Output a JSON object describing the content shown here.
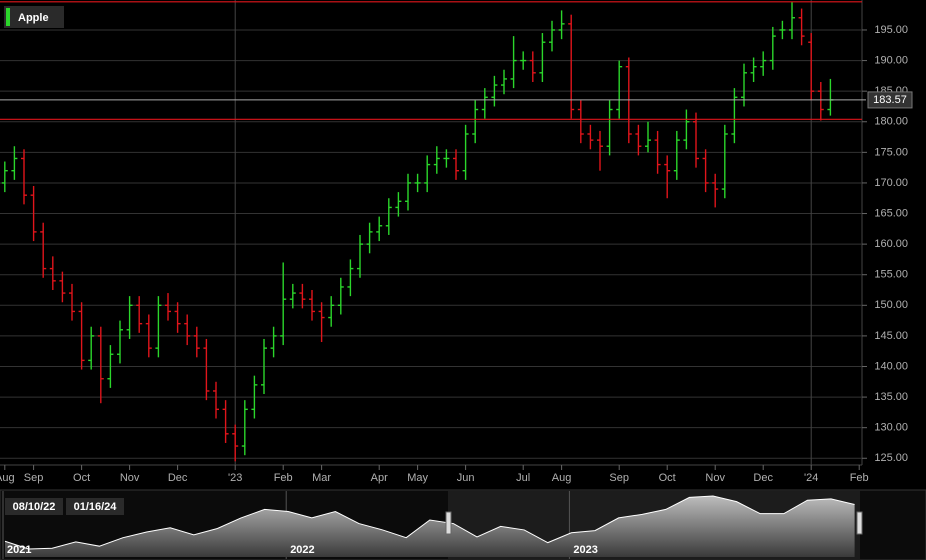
{
  "chart_data": {
    "type": "ohlc",
    "title": "Apple",
    "categories": [
      "Aug",
      null,
      null,
      "Sep",
      null,
      null,
      null,
      null,
      "Oct",
      null,
      null,
      null,
      null,
      "Nov",
      null,
      null,
      null,
      null,
      "Dec",
      null,
      null,
      null,
      null,
      null,
      "'23",
      null,
      null,
      null,
      null,
      "Feb",
      null,
      null,
      null,
      "Mar",
      null,
      null,
      null,
      null,
      null,
      "Apr",
      null,
      null,
      null,
      "May",
      null,
      null,
      null,
      null,
      "Jun",
      null,
      null,
      null,
      null,
      null,
      "Jul",
      null,
      null,
      null,
      "Aug",
      null,
      null,
      null,
      null,
      null,
      "Sep",
      null,
      null,
      null,
      null,
      "Oct",
      null,
      null,
      null,
      null,
      "Nov",
      null,
      null,
      null,
      null,
      "Dec",
      null,
      null,
      null,
      null,
      "'24",
      null,
      null,
      null,
      null,
      "Feb"
    ],
    "ohlc": [
      [
        170,
        173.5,
        168.5,
        172
      ],
      [
        172,
        176,
        170.5,
        174
      ],
      [
        174,
        175.5,
        166.5,
        168
      ],
      [
        168,
        169.5,
        160.5,
        162
      ],
      [
        162,
        163.5,
        154.5,
        156
      ],
      [
        156,
        158,
        152.5,
        154
      ],
      [
        154,
        155.5,
        150.5,
        152
      ],
      [
        152,
        153.5,
        147.5,
        149
      ],
      [
        149,
        150.5,
        139.5,
        141
      ],
      [
        141,
        146.5,
        139.5,
        145
      ],
      [
        145,
        146.5,
        134,
        138
      ],
      [
        138,
        143.5,
        136.5,
        142
      ],
      [
        142,
        147.5,
        140.5,
        146
      ],
      [
        146,
        151.5,
        144.5,
        150
      ],
      [
        150,
        151.5,
        145.5,
        147
      ],
      [
        147,
        148.5,
        141.5,
        143
      ],
      [
        143,
        151.5,
        141.5,
        150
      ],
      [
        150,
        152,
        147.5,
        149
      ],
      [
        149,
        150.5,
        145.5,
        147
      ],
      [
        147,
        148.5,
        143.5,
        145
      ],
      [
        145,
        146.5,
        141.5,
        143
      ],
      [
        143,
        144.5,
        134.5,
        136
      ],
      [
        136,
        137.5,
        131.5,
        133
      ],
      [
        133,
        134.5,
        127.5,
        129
      ],
      [
        129,
        130.5,
        124.5,
        127
      ],
      [
        127,
        134.5,
        125.5,
        133
      ],
      [
        133,
        138.5,
        131.5,
        137
      ],
      [
        137,
        144.5,
        135.5,
        143
      ],
      [
        143,
        146.5,
        141.5,
        145
      ],
      [
        145,
        157,
        143.5,
        151
      ],
      [
        151,
        153.5,
        149.5,
        152
      ],
      [
        152,
        153.5,
        149.5,
        151
      ],
      [
        151,
        152.5,
        147.5,
        149
      ],
      [
        149,
        150.5,
        144,
        148
      ],
      [
        148,
        151.5,
        146.5,
        150
      ],
      [
        150,
        154.5,
        148.5,
        153
      ],
      [
        153,
        157.5,
        151.5,
        156
      ],
      [
        156,
        161.5,
        154.5,
        160
      ],
      [
        160,
        163.5,
        158.5,
        162
      ],
      [
        162,
        164.5,
        160.5,
        163
      ],
      [
        163,
        167.5,
        161.5,
        166
      ],
      [
        166,
        168.5,
        164.5,
        167
      ],
      [
        167,
        171.5,
        165.5,
        170
      ],
      [
        170,
        171.5,
        168.5,
        170
      ],
      [
        170,
        174.5,
        168.5,
        173
      ],
      [
        173,
        176,
        171.5,
        174
      ],
      [
        174,
        175.5,
        172.5,
        174
      ],
      [
        174,
        175.5,
        170.5,
        172
      ],
      [
        172,
        179.5,
        170.5,
        178
      ],
      [
        178,
        183.5,
        176.5,
        182
      ],
      [
        182,
        185.5,
        180.5,
        184
      ],
      [
        184,
        187.5,
        182.5,
        186
      ],
      [
        186,
        188.5,
        184.5,
        187
      ],
      [
        187,
        194,
        185.5,
        190
      ],
      [
        190,
        191.5,
        188.5,
        190
      ],
      [
        190,
        191.5,
        186.5,
        188
      ],
      [
        188,
        194.5,
        186.5,
        193
      ],
      [
        193,
        196.5,
        191.5,
        195
      ],
      [
        195,
        198.2,
        193.5,
        196
      ],
      [
        196,
        197.5,
        180.5,
        182
      ],
      [
        182,
        183.5,
        176.5,
        178
      ],
      [
        178,
        179.5,
        175.5,
        177
      ],
      [
        177,
        178.5,
        172,
        176
      ],
      [
        176,
        183.5,
        174.5,
        182
      ],
      [
        182,
        190,
        180.5,
        189
      ],
      [
        189,
        190.5,
        176.5,
        178
      ],
      [
        178,
        179.5,
        174.5,
        176
      ],
      [
        176,
        180,
        175,
        177
      ],
      [
        177,
        178.5,
        171.5,
        173
      ],
      [
        173,
        174.5,
        167.5,
        172
      ],
      [
        172,
        178.5,
        170.5,
        177
      ],
      [
        177,
        182,
        175.5,
        180
      ],
      [
        180,
        181.5,
        172.5,
        174
      ],
      [
        174,
        175.5,
        168.5,
        170
      ],
      [
        170,
        171.5,
        166,
        169
      ],
      [
        169,
        179.5,
        167.5,
        178
      ],
      [
        178,
        185.5,
        176.5,
        184
      ],
      [
        184,
        189.5,
        182.5,
        188
      ],
      [
        188,
        190.5,
        186.5,
        189
      ],
      [
        189,
        191.5,
        187.5,
        190
      ],
      [
        190,
        195.5,
        188.5,
        194
      ],
      [
        195,
        196.5,
        193.5,
        195
      ],
      [
        195,
        199.6,
        193.5,
        197
      ],
      [
        197,
        198.5,
        192.5,
        194
      ],
      [
        193,
        194.5,
        183.5,
        185
      ],
      [
        185,
        186.5,
        180.2,
        182
      ],
      [
        182,
        187,
        181,
        183.57
      ],
      null,
      null,
      null
    ],
    "up_color": "#2bd62b",
    "down_color": "#e0151b",
    "ylim": [
      123.9,
      199.9
    ],
    "yticks": [
      {
        "value": 125,
        "label": "125.00"
      },
      {
        "value": 130,
        "label": "130.00"
      },
      {
        "value": 135,
        "label": "135.00"
      },
      {
        "value": 140,
        "label": "140.00"
      },
      {
        "value": 145,
        "label": "145.00"
      },
      {
        "value": 150,
        "label": "150.00"
      },
      {
        "value": 155,
        "label": "155.00"
      },
      {
        "value": 160,
        "label": "160.00"
      },
      {
        "value": 165,
        "label": "165.00"
      },
      {
        "value": 170,
        "label": "170.00"
      },
      {
        "value": 175,
        "label": "175.00"
      },
      {
        "value": 180,
        "label": "180.00"
      },
      {
        "value": 185,
        "label": "185.00"
      },
      {
        "value": 190,
        "label": "190.00"
      },
      {
        "value": 195,
        "label": "195.00"
      }
    ],
    "grid": true,
    "reference_lines": [
      {
        "value": 199.6,
        "color": "#e0151b"
      },
      {
        "value": 180.4,
        "color": "#e0151b"
      }
    ],
    "last_price": {
      "value": 183.57,
      "label": "183.57"
    },
    "navigator": {
      "start_label": "08/10/22",
      "end_label": "01/16/24",
      "categories": [
        "2021",
        null,
        null,
        null,
        null,
        null,
        null,
        null,
        null,
        null,
        null,
        null,
        "2022",
        null,
        null,
        null,
        null,
        null,
        null,
        null,
        null,
        null,
        null,
        null,
        "2023",
        null,
        null,
        null,
        null,
        null,
        null,
        null,
        null,
        null,
        null,
        null,
        null
      ],
      "values": [
        132,
        121,
        122,
        131,
        125,
        137,
        145,
        151,
        141,
        150,
        165,
        177,
        174,
        165,
        174,
        157,
        148,
        137,
        162,
        157,
        138,
        153,
        148,
        130,
        144,
        147,
        165,
        170,
        177,
        194,
        196,
        188,
        171,
        171,
        190,
        192,
        184
      ]
    }
  }
}
